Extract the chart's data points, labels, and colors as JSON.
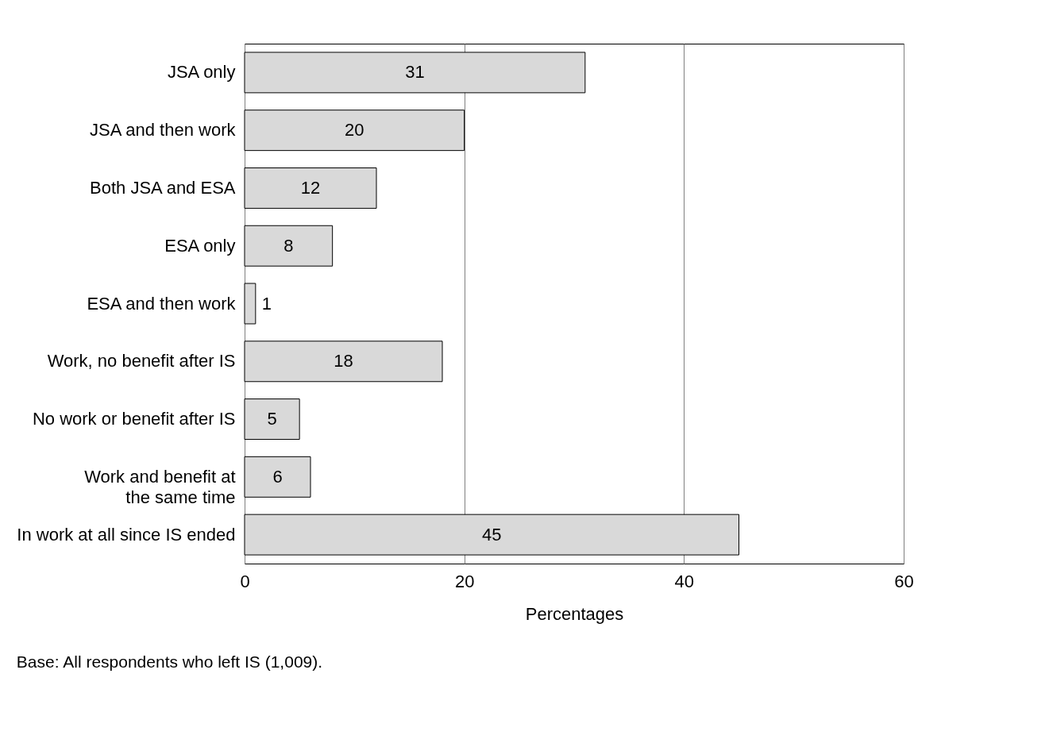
{
  "chart_data": {
    "type": "bar",
    "orientation": "horizontal",
    "categories": [
      "JSA only",
      "JSA and then work",
      "Both JSA and ESA",
      "ESA only",
      "ESA and then work",
      "Work, no benefit after IS",
      "No work or benefit after IS",
      "Work and benefit at the same time",
      "In work at all since IS ended"
    ],
    "values": [
      31,
      20,
      12,
      8,
      1,
      18,
      5,
      6,
      45
    ],
    "color": "#d9d9d9",
    "xlim": [
      0,
      60
    ],
    "xticks": [
      0,
      20,
      40,
      60
    ],
    "grid": "x",
    "xlabel": "Percentages",
    "data_labels": true,
    "annotations": [
      "Base: All respondents who left IS (1,009)."
    ]
  }
}
